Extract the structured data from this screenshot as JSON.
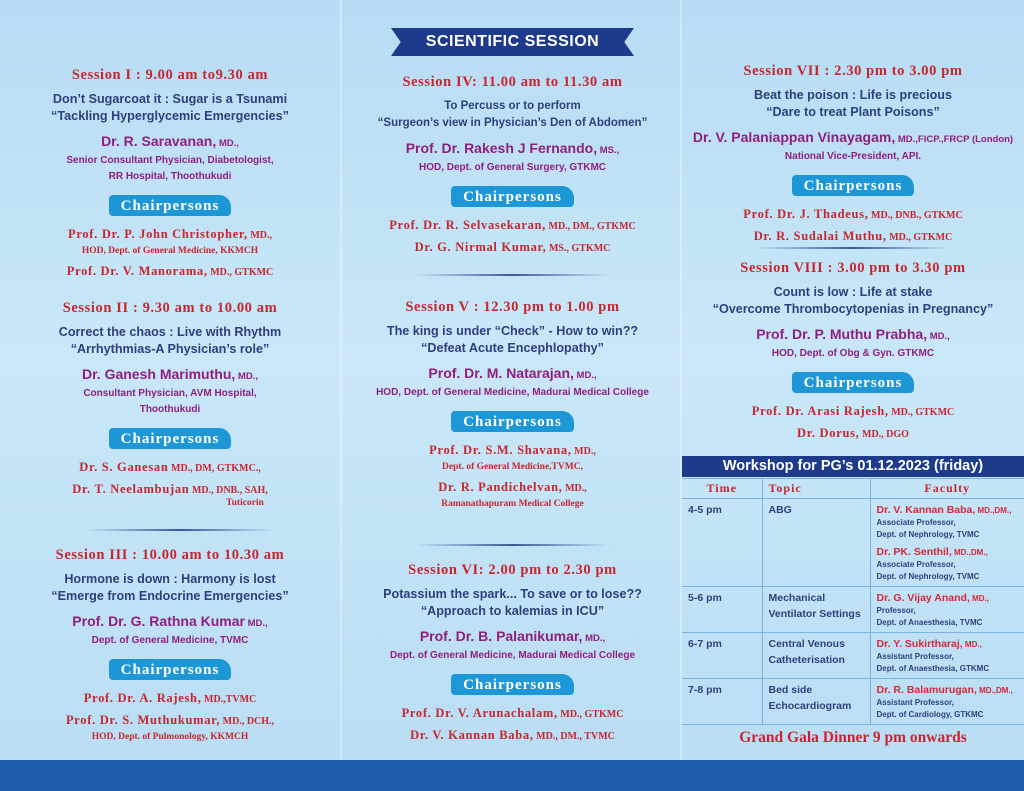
{
  "banner": "SCIENTIFIC SESSION",
  "chair_label": "Chairpersons",
  "columns": [
    [
      {
        "heading": "Session I : 9.00 am to9.30 am",
        "topic": [
          "Don’t Sugarcoat it : Sugar is a Tsunami",
          "“Tackling Hyperglycemic Emergencies”"
        ],
        "speaker": {
          "name": "Dr. R. Saravanan,",
          "quals": " MD.,"
        },
        "affiliation": [
          "Senior Consultant Physician, Diabetologist,",
          "RR Hospital, Thoothukudi"
        ],
        "chairs": [
          {
            "name": "Prof. Dr. P. John Christopher,",
            "quals": " MD.,",
            "affiliation": [
              "HOD, Dept. of  General Medicine, KKMCH"
            ]
          },
          {
            "name": "Prof. Dr. V. Manorama,",
            "quals": " MD., GTKMC",
            "affiliation": []
          }
        ]
      },
      {
        "heading": "Session II : 9.30 am to 10.00 am",
        "topic": [
          "Correct the chaos : Live with Rhythm",
          "“Arrhythmias-A Physician’s role”"
        ],
        "speaker": {
          "name": "Dr. Ganesh Marimuthu,",
          "quals": " MD.,"
        },
        "affiliation": [
          "Consultant Physician, AVM Hospital,",
          "Thoothukudi"
        ],
        "chairs": [
          {
            "name": "Dr. S. Ganesan",
            "quals": " MD., DM, GTKMC.,",
            "affiliation": []
          },
          {
            "name": "Dr. T. Neelambujan",
            "quals": " MD., DNB., SAH,",
            "affiliation": [
              "Tuticorin"
            ]
          }
        ]
      },
      {
        "heading": "Session III : 10.00 am to 10.30 am",
        "topic": [
          "Hormone is down : Harmony is lost",
          "“Emerge from Endocrine Emergencies”"
        ],
        "speaker": {
          "name": "Prof. Dr. G. Rathna Kumar",
          "quals": " MD.,"
        },
        "affiliation": [
          "Dept. of General Medicine, TVMC"
        ],
        "chairs": [
          {
            "name": "Prof. Dr. A. Rajesh,",
            "quals": " MD.,TVMC",
            "affiliation": []
          },
          {
            "name": "Prof. Dr. S. Muthukumar,",
            "quals": " MD., DCH.,",
            "affiliation": [
              "HOD, Dept. of Pulmonology, KKMCH"
            ]
          }
        ]
      }
    ],
    [
      {
        "heading": "Session IV: 11.00 am to 11.30 am",
        "small": true,
        "topic": [
          "To Percuss or to perform",
          "“Surgeon’s view in Physician’s  Den of Abdomen”"
        ],
        "speaker": {
          "name": "Prof. Dr. Rakesh J Fernando,",
          "quals": " MS.,"
        },
        "affiliation": [
          "HOD, Dept. of General Surgery, GTKMC"
        ],
        "chairs": [
          {
            "name": "Prof. Dr. R. Selvasekaran,",
            "quals": " MD., DM., GTKMC",
            "affiliation": []
          },
          {
            "name": "Dr. G. Nirmal Kumar,",
            "quals": " MS., GTKMC",
            "affiliation": []
          }
        ]
      },
      {
        "heading": "Session V : 12.30 pm to 1.00 pm",
        "topic": [
          "The king is under “Check” - How to win??",
          "“Defeat Acute Encephlopathy”"
        ],
        "speaker": {
          "name": "Prof. Dr. M. Natarajan,",
          "quals": " MD.,"
        },
        "affiliation": [
          "HOD, Dept. of General Medicine, Madurai Medical College"
        ],
        "chairs": [
          {
            "name": "Prof. Dr. S.M. Shavana,",
            "quals": " MD.,",
            "affiliation": [
              "Dept. of General Medicine,TVMC,"
            ]
          },
          {
            "name": "Dr. R. Pandichelvan,",
            "quals": " MD.,",
            "affiliation": [
              "Ramanathapuram Medical College"
            ]
          }
        ]
      },
      {
        "heading": "Session VI: 2.00 pm to 2.30 pm",
        "topic": [
          "Potassium the spark... To save or to lose??",
          "“Approach to kalemias in ICU”"
        ],
        "speaker": {
          "name": "Prof. Dr. B. Palanikumar,",
          "quals": " MD.,"
        },
        "affiliation": [
          "Dept. of General Medicine, Madurai Medical College"
        ],
        "chairs": [
          {
            "name": "Prof. Dr. V. Arunachalam,",
            "quals": " MD., GTKMC",
            "affiliation": []
          },
          {
            "name": "Dr. V. Kannan Baba,",
            "quals": " MD., DM., TVMC",
            "affiliation": []
          }
        ]
      }
    ],
    [
      {
        "heading": "Session VII : 2.30 pm to 3.00 pm",
        "topic": [
          "Beat the poison : Life is precious",
          "“Dare to treat Plant Poisons”"
        ],
        "speaker": {
          "name": "Dr. V. Palaniappan Vinayagam,",
          "quals": " MD.,FICP.,FRCP (London)"
        },
        "affiliation": [
          "National Vice-President, API."
        ],
        "chairs": [
          {
            "name": "Prof. Dr. J. Thadeus,",
            "quals": " MD., DNB., GTKMC",
            "affiliation": []
          },
          {
            "name": "Dr. R. Sudalai Muthu,",
            "quals": " MD., GTKMC",
            "affiliation": []
          }
        ]
      },
      {
        "heading": "Session VIII : 3.00 pm to 3.30 pm",
        "topic": [
          "Count is low : Life at stake",
          "“Overcome Thrombocytopenias in Pregnancy”"
        ],
        "speaker": {
          "name": "Prof. Dr. P. Muthu Prabha,",
          "quals": " MD.,"
        },
        "affiliation": [
          "HOD, Dept. of Obg & Gyn. GTKMC"
        ],
        "chairs": [
          {
            "name": "Prof. Dr. Arasi Rajesh,",
            "quals": " MD., GTKMC",
            "affiliation": []
          },
          {
            "name": "Dr. Dorus,",
            "quals": " MD., DGO",
            "affiliation": []
          }
        ]
      }
    ]
  ],
  "workshop": {
    "title": "Workshop for PG’s 01.12.2023 (friday)",
    "headers": [
      "Time",
      "Topic",
      "Faculty"
    ],
    "rows": [
      {
        "time": "4-5 pm",
        "topic": [
          "ABG"
        ],
        "faculty": [
          {
            "name": "Dr. V. Kannan Baba,",
            "quals": " MD.,DM.,",
            "lines": [
              "Associate Professor,",
              "Dept. of Nephrology, TVMC"
            ]
          },
          {
            "name": "Dr. PK. Senthil,",
            "quals": " MD.,DM.,",
            "lines": [
              "Associate Professor,",
              "Dept. of Nephrology, TVMC"
            ]
          }
        ]
      },
      {
        "time": "5-6 pm",
        "topic": [
          "Mechanical",
          "Ventilator Settings"
        ],
        "faculty": [
          {
            "name": "Dr. G. Vijay Anand,",
            "quals": " MD.,",
            "lines": [
              "Professor,",
              "Dept. of Anaesthesia, TVMC"
            ]
          }
        ]
      },
      {
        "time": "6-7 pm",
        "topic": [
          "Central Venous",
          "Catheterisation"
        ],
        "faculty": [
          {
            "name": "Dr. Y. Sukirtharaj,",
            "quals": " MD.,",
            "lines": [
              "Assistant Professor,",
              "Dept. of Anaesthesia, GTKMC"
            ]
          }
        ]
      },
      {
        "time": "7-8 pm",
        "topic": [
          "Bed side",
          "Echocardiogram"
        ],
        "faculty": [
          {
            "name": "Dr. R. Balamurugan,",
            "quals": " MD.,DM.,",
            "lines": [
              "Assistant Professor,",
              "Dept. of Cardiology, GTKMC"
            ]
          }
        ]
      }
    ]
  },
  "gala": "Grand Gala Dinner 9 pm onwards",
  "colors": {
    "heading": "#c8262f",
    "topic": "#2d3f7c",
    "speaker": "#8e1f7f",
    "pill": "#1d97d6",
    "banner": "#1e3a8a",
    "footer": "#1c5da9"
  }
}
